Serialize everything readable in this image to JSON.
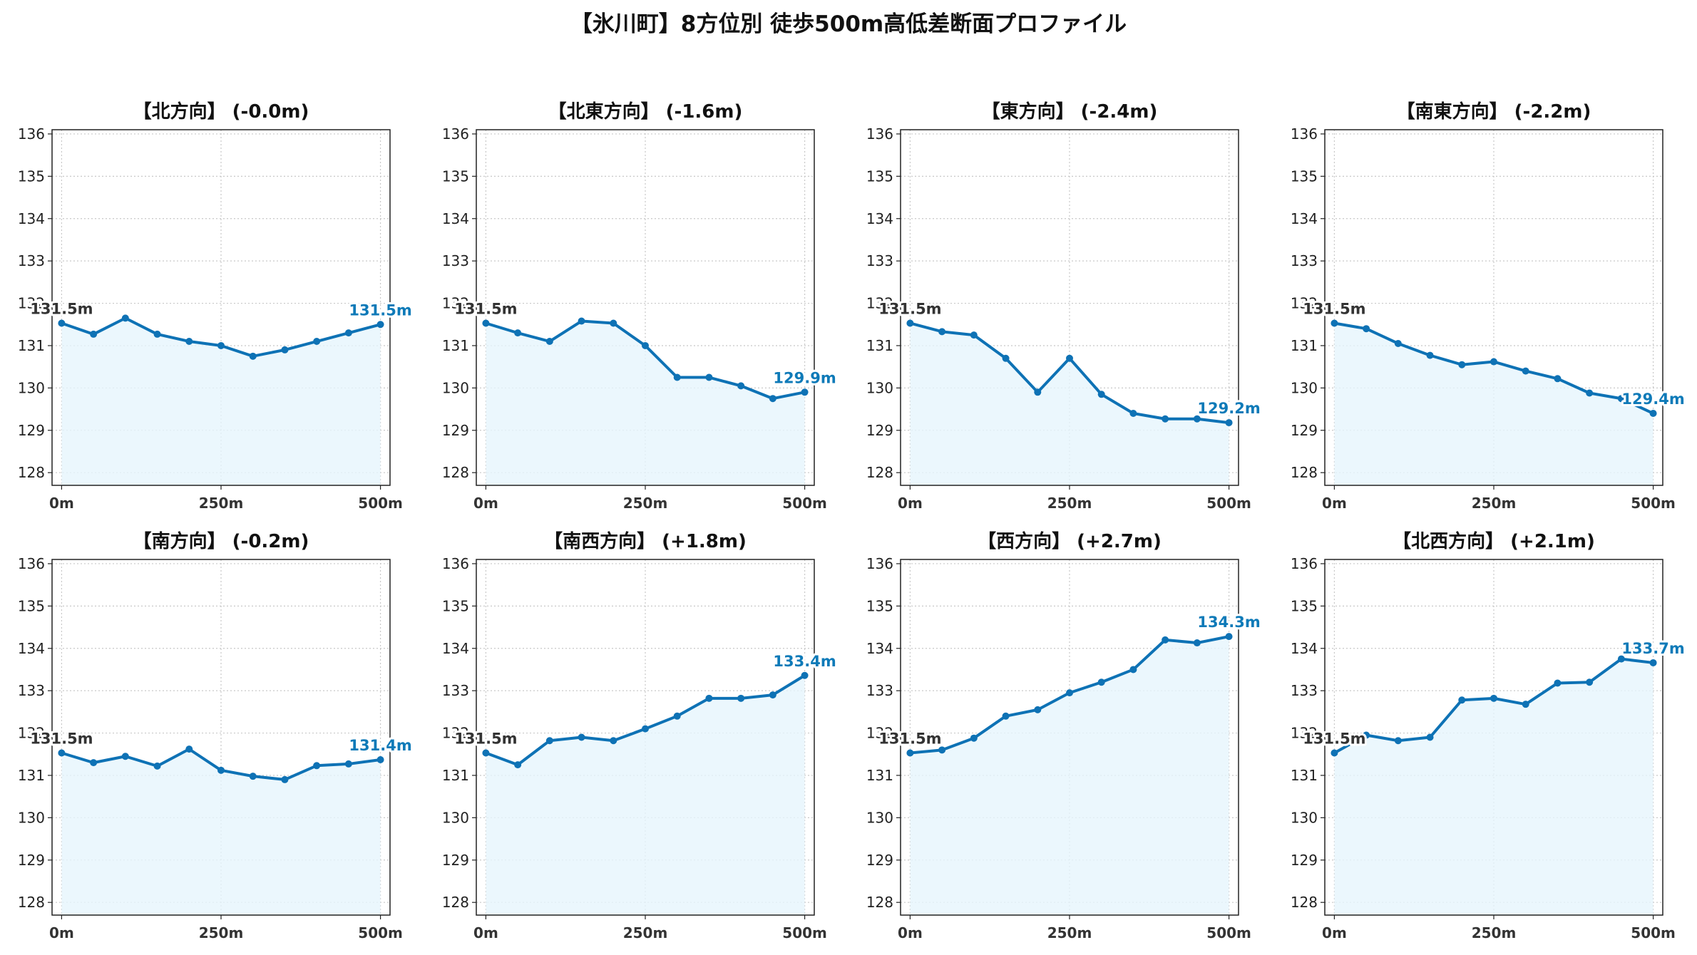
{
  "title": "【氷川町】8方位別 徒歩500m高低差断面プロファイル",
  "colors": {
    "line": "#0e72b5",
    "fill": "#e6f5fc",
    "end_label": "#0e7ab8",
    "start_label": "#333333",
    "grid": "#c8c8c8"
  },
  "chart_data": [
    {
      "type": "area",
      "title": "【北方向】 (-0.0m)",
      "x": [
        0,
        50,
        100,
        150,
        200,
        250,
        300,
        350,
        400,
        450,
        500
      ],
      "x_ticks": [
        "0m",
        "250m",
        "500m"
      ],
      "y_ticks": [
        "128",
        "129",
        "130",
        "131",
        "132",
        "133",
        "134",
        "135",
        "136"
      ],
      "ylim": [
        127.7,
        136.1
      ],
      "grid": true,
      "values": [
        131.53,
        131.27,
        131.65,
        131.27,
        131.1,
        131.0,
        130.75,
        130.9,
        131.1,
        131.3,
        131.5
      ],
      "start_label": "131.5m",
      "end_label": "131.5m"
    },
    {
      "type": "area",
      "title": "【北東方向】 (-1.6m)",
      "x": [
        0,
        50,
        100,
        150,
        200,
        250,
        300,
        350,
        400,
        450,
        500
      ],
      "x_ticks": [
        "0m",
        "250m",
        "500m"
      ],
      "y_ticks": [
        "128",
        "129",
        "130",
        "131",
        "132",
        "133",
        "134",
        "135",
        "136"
      ],
      "ylim": [
        127.7,
        136.1
      ],
      "grid": true,
      "values": [
        131.53,
        131.3,
        131.1,
        131.58,
        131.53,
        131.0,
        130.25,
        130.25,
        130.05,
        129.75,
        129.9
      ],
      "start_label": "131.5m",
      "end_label": "129.9m"
    },
    {
      "type": "area",
      "title": "【東方向】 (-2.4m)",
      "x": [
        0,
        50,
        100,
        150,
        200,
        250,
        300,
        350,
        400,
        450,
        500
      ],
      "x_ticks": [
        "0m",
        "250m",
        "500m"
      ],
      "y_ticks": [
        "128",
        "129",
        "130",
        "131",
        "132",
        "133",
        "134",
        "135",
        "136"
      ],
      "ylim": [
        127.7,
        136.1
      ],
      "grid": true,
      "values": [
        131.53,
        131.33,
        131.25,
        130.7,
        129.9,
        130.7,
        129.85,
        129.4,
        129.27,
        129.27,
        129.18
      ],
      "start_label": "131.5m",
      "end_label": "129.2m"
    },
    {
      "type": "area",
      "title": "【南東方向】 (-2.2m)",
      "x": [
        0,
        50,
        100,
        150,
        200,
        250,
        300,
        350,
        400,
        450,
        500
      ],
      "x_ticks": [
        "0m",
        "250m",
        "500m"
      ],
      "y_ticks": [
        "128",
        "129",
        "130",
        "131",
        "132",
        "133",
        "134",
        "135",
        "136"
      ],
      "ylim": [
        127.7,
        136.1
      ],
      "grid": true,
      "values": [
        131.53,
        131.4,
        131.05,
        130.77,
        130.55,
        130.62,
        130.4,
        130.22,
        129.88,
        129.75,
        129.4
      ],
      "start_label": "131.5m",
      "end_label": "129.4m"
    },
    {
      "type": "area",
      "title": "【南方向】 (-0.2m)",
      "x": [
        0,
        50,
        100,
        150,
        200,
        250,
        300,
        350,
        400,
        450,
        500
      ],
      "x_ticks": [
        "0m",
        "250m",
        "500m"
      ],
      "y_ticks": [
        "128",
        "129",
        "130",
        "131",
        "132",
        "133",
        "134",
        "135",
        "136"
      ],
      "ylim": [
        127.7,
        136.1
      ],
      "grid": true,
      "values": [
        131.53,
        131.3,
        131.45,
        131.22,
        131.62,
        131.12,
        130.98,
        130.9,
        131.23,
        131.27,
        131.37
      ],
      "start_label": "131.5m",
      "end_label": "131.4m"
    },
    {
      "type": "area",
      "title": "【南西方向】 (+1.8m)",
      "x": [
        0,
        50,
        100,
        150,
        200,
        250,
        300,
        350,
        400,
        450,
        500
      ],
      "x_ticks": [
        "0m",
        "250m",
        "500m"
      ],
      "y_ticks": [
        "128",
        "129",
        "130",
        "131",
        "132",
        "133",
        "134",
        "135",
        "136"
      ],
      "ylim": [
        127.7,
        136.1
      ],
      "grid": true,
      "values": [
        131.53,
        131.25,
        131.82,
        131.9,
        131.82,
        132.1,
        132.4,
        132.82,
        132.82,
        132.9,
        133.36
      ],
      "start_label": "131.5m",
      "end_label": "133.4m"
    },
    {
      "type": "area",
      "title": "【西方向】 (+2.7m)",
      "x": [
        0,
        50,
        100,
        150,
        200,
        250,
        300,
        350,
        400,
        450,
        500
      ],
      "x_ticks": [
        "0m",
        "250m",
        "500m"
      ],
      "y_ticks": [
        "128",
        "129",
        "130",
        "131",
        "132",
        "133",
        "134",
        "135",
        "136"
      ],
      "ylim": [
        127.7,
        136.1
      ],
      "grid": true,
      "values": [
        131.53,
        131.6,
        131.88,
        132.4,
        132.55,
        132.95,
        133.2,
        133.5,
        134.2,
        134.13,
        134.28
      ],
      "start_label": "131.5m",
      "end_label": "134.3m"
    },
    {
      "type": "area",
      "title": "【北西方向】 (+2.1m)",
      "x": [
        0,
        50,
        100,
        150,
        200,
        250,
        300,
        350,
        400,
        450,
        500
      ],
      "x_ticks": [
        "0m",
        "250m",
        "500m"
      ],
      "y_ticks": [
        "128",
        "129",
        "130",
        "131",
        "132",
        "133",
        "134",
        "135",
        "136"
      ],
      "ylim": [
        127.7,
        136.1
      ],
      "grid": true,
      "values": [
        131.53,
        131.95,
        131.82,
        131.9,
        132.78,
        132.82,
        132.68,
        133.18,
        133.2,
        133.75,
        133.66
      ],
      "start_label": "131.5m",
      "end_label": "133.7m"
    }
  ]
}
